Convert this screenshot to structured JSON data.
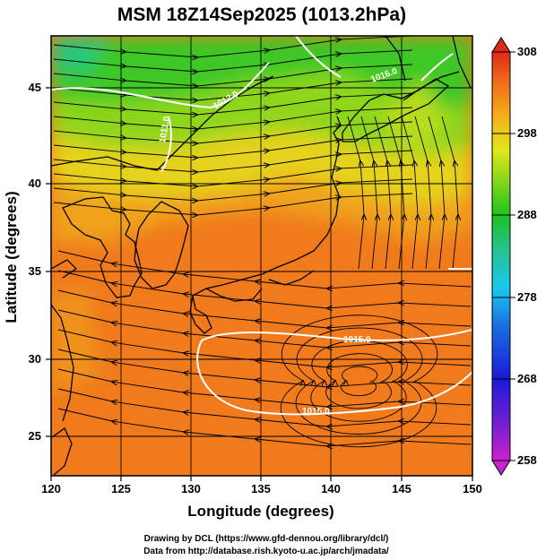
{
  "title": "MSM 18Z14Sep2025 (1013.2hPa)",
  "xlabel": "Longitude (degrees)",
  "ylabel": "Latitude  (degrees)",
  "colorbar": {
    "min": 258,
    "max": 308,
    "tick_labels": [
      "308",
      "298",
      "288",
      "278",
      "268",
      "258"
    ]
  },
  "credits": {
    "line1": "Drawing by DCL (https://www.gfd-dennou.org/library/dcl/)",
    "line2": "Data from http://database.rish.kyoto-u.ac.jp/arch/jmadata/"
  },
  "map": {
    "lon_range": [
      120,
      150
    ],
    "lat_range": [
      22.5,
      48
    ],
    "lon_ticks": [
      "120",
      "125",
      "130",
      "135",
      "140",
      "145",
      "150"
    ],
    "lat_ticks": [
      "25",
      "30",
      "35",
      "40",
      "45"
    ],
    "field": "surface temperature shading with wind streamlines and isobars",
    "isobar_labels": [
      "1015.0",
      "1015.0",
      "1016.0",
      "1012.0",
      "1011.0"
    ],
    "colors": {
      "coast": "#000000",
      "isobar": "#ffffff",
      "streamline": "#000000"
    }
  },
  "chart_data": {
    "type": "heatmap",
    "title": "MSM 18Z14Sep2025 (1013.2hPa)",
    "xlabel": "Longitude (degrees)",
    "ylabel": "Latitude  (degrees)",
    "xlim": [
      120,
      150
    ],
    "ylim": [
      22.5,
      48
    ],
    "colorscale_range": [
      258,
      308
    ],
    "colorbar_ticks": [
      258,
      268,
      278,
      288,
      298,
      308
    ]
  }
}
